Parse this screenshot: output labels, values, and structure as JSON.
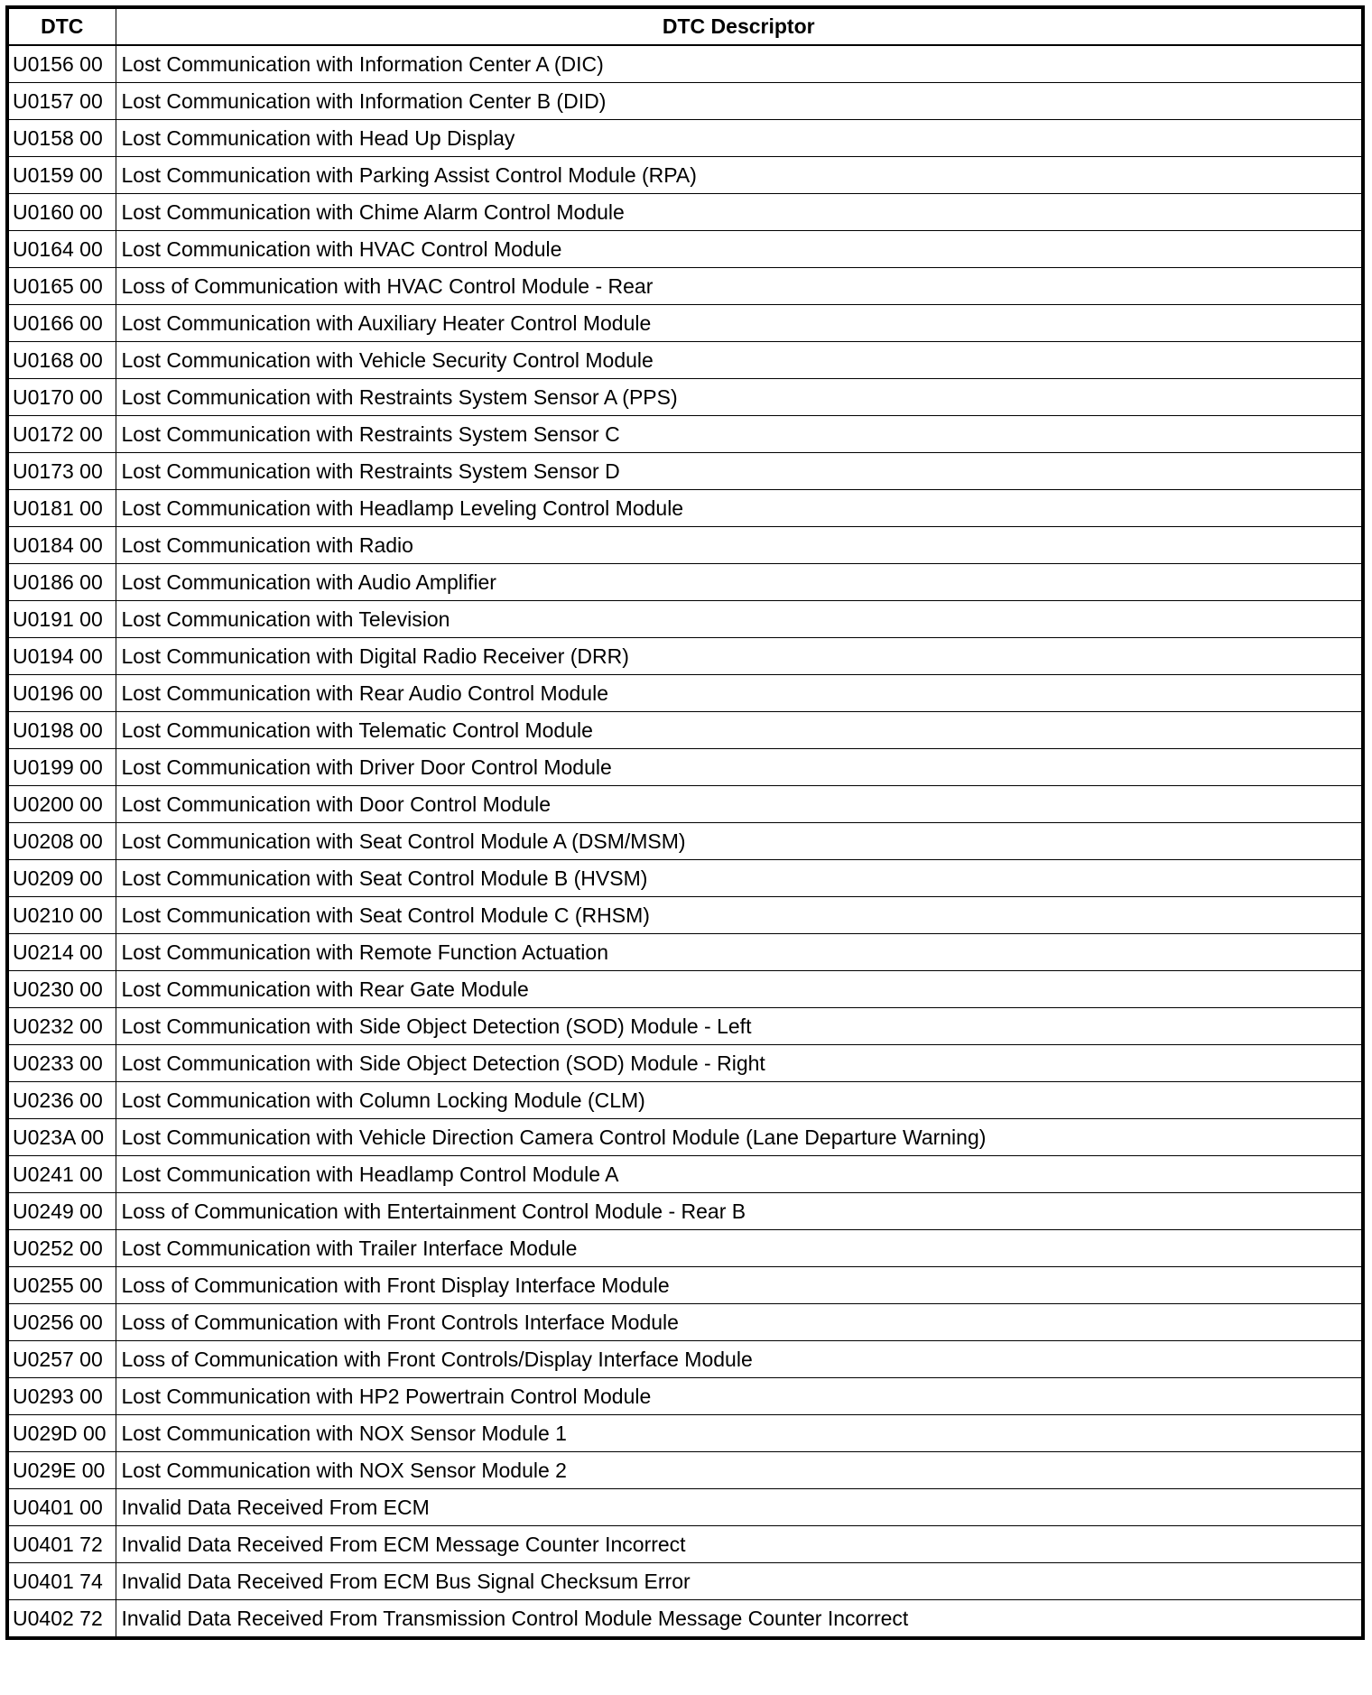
{
  "table": {
    "headers": [
      "DTC",
      "DTC Descriptor"
    ],
    "rows": [
      [
        "U0156 00",
        "Lost Communication with Information Center A (DIC)"
      ],
      [
        "U0157 00",
        "Lost Communication with Information Center B (DID)"
      ],
      [
        "U0158 00",
        "Lost Communication with Head Up Display"
      ],
      [
        "U0159 00",
        "Lost Communication with Parking Assist Control Module (RPA)"
      ],
      [
        "U0160 00",
        "Lost Communication with Chime Alarm Control Module"
      ],
      [
        "U0164 00",
        "Lost Communication with HVAC Control Module"
      ],
      [
        "U0165 00",
        "Loss of Communication with HVAC Control Module - Rear"
      ],
      [
        "U0166 00",
        "Lost Communication with Auxiliary Heater Control Module"
      ],
      [
        "U0168 00",
        "Lost Communication with Vehicle Security Control Module"
      ],
      [
        "U0170 00",
        "Lost Communication with Restraints System Sensor A (PPS)"
      ],
      [
        "U0172 00",
        "Lost Communication with Restraints System Sensor C"
      ],
      [
        "U0173 00",
        "Lost Communication with Restraints System Sensor D"
      ],
      [
        "U0181 00",
        "Lost Communication with Headlamp Leveling Control Module"
      ],
      [
        "U0184 00",
        "Lost Communication with Radio"
      ],
      [
        "U0186 00",
        "Lost Communication with Audio Amplifier"
      ],
      [
        "U0191 00",
        "Lost Communication with Television"
      ],
      [
        "U0194 00",
        "Lost Communication with Digital Radio Receiver (DRR)"
      ],
      [
        "U0196 00",
        "Lost Communication with Rear Audio Control Module"
      ],
      [
        "U0198 00",
        "Lost Communication with Telematic Control Module"
      ],
      [
        "U0199 00",
        "Lost Communication with Driver Door Control Module"
      ],
      [
        "U0200 00",
        "Lost Communication with Door Control Module"
      ],
      [
        "U0208 00",
        "Lost Communication with Seat Control Module A (DSM/MSM)"
      ],
      [
        "U0209 00",
        "Lost Communication with Seat Control Module B (HVSM)"
      ],
      [
        "U0210 00",
        "Lost Communication with Seat Control Module C (RHSM)"
      ],
      [
        "U0214 00",
        "Lost Communication with Remote Function Actuation"
      ],
      [
        "U0230 00",
        "Lost Communication with Rear Gate Module"
      ],
      [
        "U0232 00",
        "Lost Communication with Side Object Detection (SOD) Module - Left"
      ],
      [
        "U0233 00",
        "Lost Communication with Side Object Detection (SOD) Module - Right"
      ],
      [
        "U0236 00",
        "Lost Communication with Column Locking Module (CLM)"
      ],
      [
        "U023A 00",
        "Lost Communication with Vehicle Direction Camera Control Module (Lane Departure Warning)"
      ],
      [
        "U0241 00",
        "Lost Communication with Headlamp Control Module A"
      ],
      [
        "U0249 00",
        "Loss of Communication with Entertainment Control Module - Rear B"
      ],
      [
        "U0252 00",
        "Lost Communication with Trailer Interface Module"
      ],
      [
        "U0255 00",
        "Loss of Communication with Front Display Interface Module"
      ],
      [
        "U0256 00",
        "Loss of Communication with Front Controls Interface Module"
      ],
      [
        "U0257 00",
        "Loss of Communication with Front Controls/Display Interface Module"
      ],
      [
        "U0293 00",
        "Lost Communication with HP2 Powertrain Control Module"
      ],
      [
        "U029D 00",
        "Lost Communication with NOX Sensor Module 1"
      ],
      [
        "U029E 00",
        "Lost Communication with NOX Sensor Module 2"
      ],
      [
        "U0401 00",
        "Invalid Data Received From ECM"
      ],
      [
        "U0401 72",
        "Invalid Data Received From ECM Message Counter Incorrect"
      ],
      [
        "U0401 74",
        "Invalid Data Received From ECM Bus Signal Checksum Error"
      ],
      [
        "U0402 72",
        "Invalid Data Received From Transmission Control Module Message Counter Incorrect"
      ]
    ]
  }
}
